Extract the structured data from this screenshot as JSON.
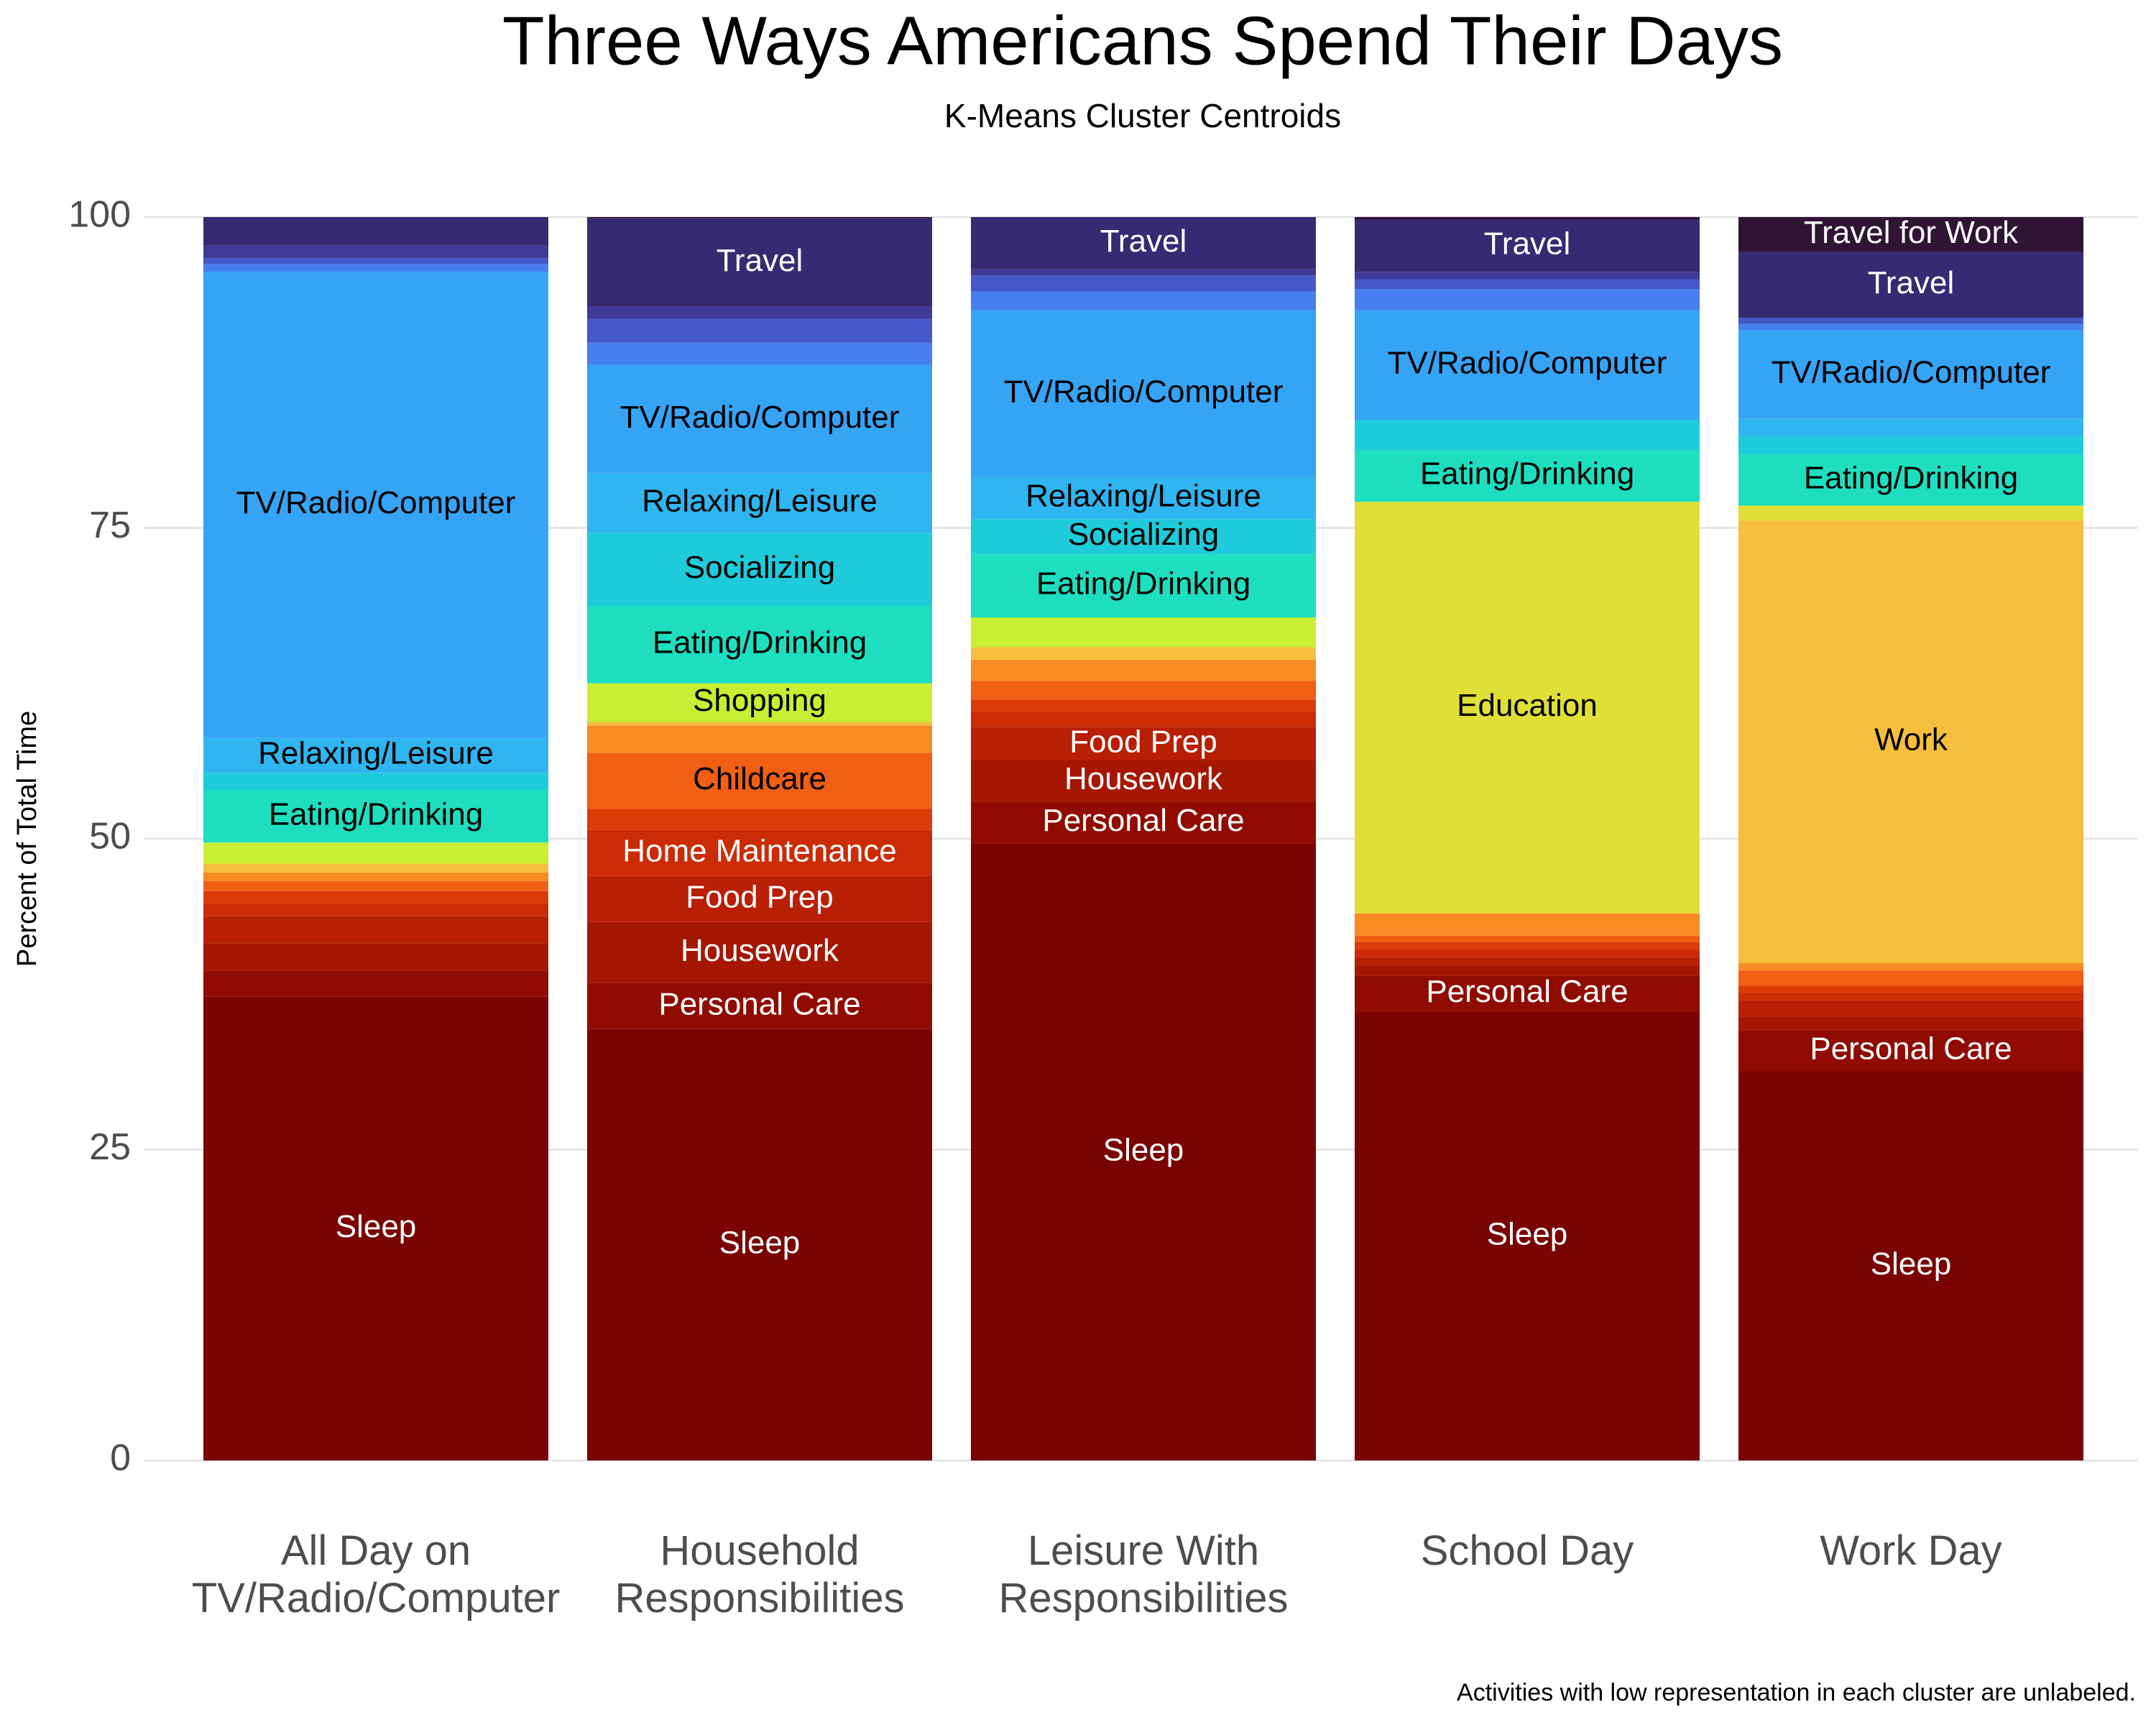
{
  "chart_data": {
    "type": "stacked_bar",
    "title": "Three Ways Americans Spend Their Days",
    "subtitle": "K-Means Cluster Centroids",
    "ylabel": "Percent of Total Time",
    "caption": "Activities with low representation in each cluster are unlabeled.",
    "categories": [
      "All Day on\nTV/Radio/Computer",
      "Household\nResponsibilities",
      "Leisure With\nResponsibilities",
      "School Day",
      "Work Day"
    ],
    "ylim": [
      0,
      100
    ],
    "yticks": [
      0,
      25,
      50,
      75,
      100
    ],
    "grid": true,
    "series": [
      {
        "name": "Sleep",
        "color": "#7a0403",
        "values": [
          37.3,
          34.7,
          49.6,
          36.1,
          31.3
        ]
      },
      {
        "name": "Personal Care",
        "color": "#900c02",
        "values": [
          2.1,
          3.7,
          3.4,
          2.9,
          3.3
        ]
      },
      {
        "name": "Housework",
        "color": "#a51703",
        "values": [
          2.2,
          4.9,
          3.3,
          0.8,
          1.1
        ]
      },
      {
        "name": "Food Prep",
        "color": "#b91f05",
        "values": [
          2.2,
          3.7,
          2.7,
          0.7,
          1.3
        ]
      },
      {
        "name": "Home Maintenance",
        "color": "#cb2c07",
        "values": [
          1.0,
          3.7,
          1.2,
          0.6,
          0.6
        ]
      },
      {
        "color": "#dc3b08",
        "values": [
          1.0,
          1.7,
          1.0,
          0.6,
          0.6
        ]
      },
      {
        "name": "Childcare",
        "color": "#f05f14",
        "values": [
          0.8,
          4.5,
          1.5,
          0.5,
          1.2
        ]
      },
      {
        "color": "#f98b24",
        "values": [
          0.7,
          2.2,
          1.7,
          1.8,
          0.6
        ]
      },
      {
        "name": "Work",
        "color": "#f5be3d",
        "values": [
          0.7,
          0.3,
          1.0,
          0,
          35.6
        ]
      },
      {
        "name": "Education",
        "color": "#e0df38",
        "values": [
          0,
          0,
          0,
          33.1,
          1.2
        ]
      },
      {
        "name": "Shopping",
        "color": "#c8ef34",
        "values": [
          1.7,
          3.1,
          2.4,
          0,
          0
        ]
      },
      {
        "name": "Eating/Drinking",
        "color": "#1ddfc0",
        "values": [
          4.2,
          6.2,
          5.1,
          4.2,
          4.1
        ]
      },
      {
        "name": "Socializing",
        "color": "#1ecbda",
        "values": [
          1.4,
          5.9,
          2.8,
          2.4,
          1.5
        ]
      },
      {
        "name": "Relaxing/Leisure",
        "color": "#2fb5f0",
        "values": [
          2.8,
          4.8,
          3.4,
          0,
          1.4
        ]
      },
      {
        "name": "TV/Radio/Computer",
        "color": "#36a4f5",
        "values": [
          37.5,
          8.7,
          13.4,
          8.8,
          7.1
        ]
      },
      {
        "color": "#4680f0",
        "values": [
          0.6,
          1.8,
          1.5,
          1.7,
          0.5
        ]
      },
      {
        "color": "#4458c8",
        "values": [
          0.5,
          1.9,
          1.3,
          0.8,
          0.5
        ]
      },
      {
        "color": "#3f3a96",
        "values": [
          1.0,
          1.0,
          0.5,
          0.6,
          0
        ]
      },
      {
        "name": "Travel",
        "color": "#382a72",
        "values": [
          2.3,
          7.1,
          4.2,
          4.2,
          5.3
        ]
      },
      {
        "name": "Travel for Work",
        "color": "#301434",
        "values": [
          0,
          0.1,
          0,
          0.2,
          2.8
        ]
      }
    ]
  }
}
